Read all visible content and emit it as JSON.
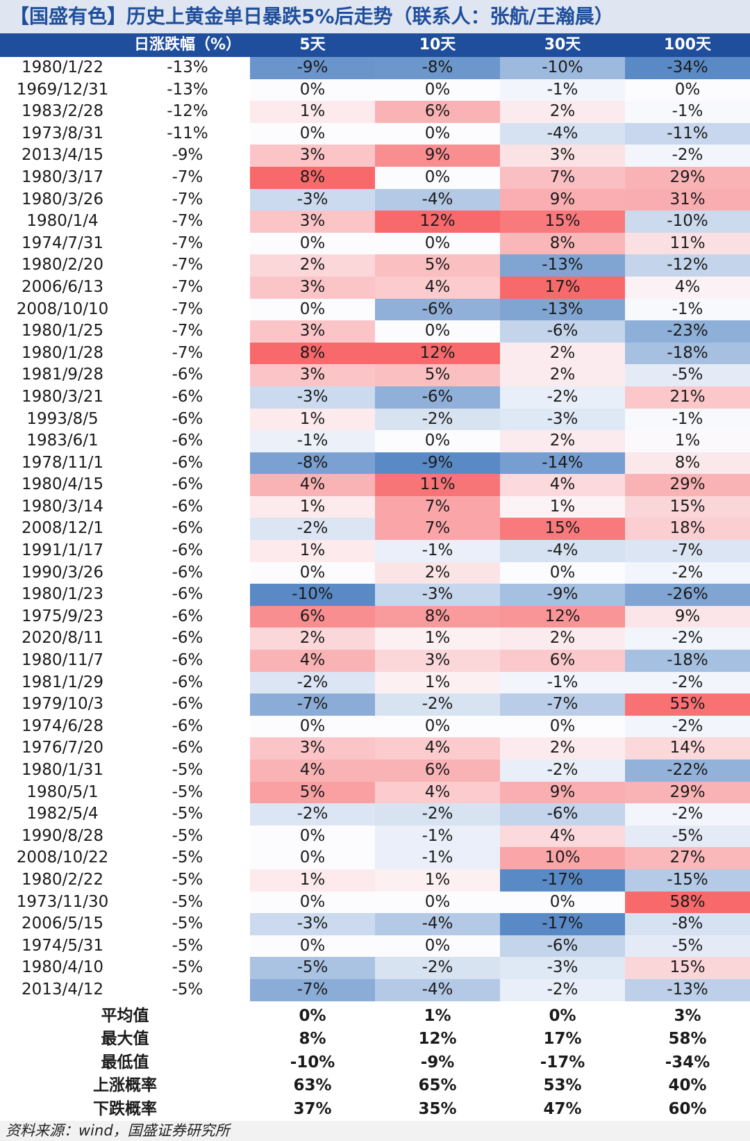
{
  "title": "【国盛有色】历史上黄金单日暴跌5%后走势（联系人：张航/王瀚晨）",
  "columns": {
    "date": "",
    "drop": "日涨跌幅（%）",
    "d5": "5天",
    "d10": "10天",
    "d30": "30天",
    "d100": "100天"
  },
  "rows": [
    {
      "date": "1980/1/22",
      "drop": "-13%",
      "d5": "-9%",
      "d10": "-8%",
      "d30": "-10%",
      "d100": "-34%"
    },
    {
      "date": "1969/12/31",
      "drop": "-13%",
      "d5": "0%",
      "d10": "0%",
      "d30": "-1%",
      "d100": "0%"
    },
    {
      "date": "1983/2/28",
      "drop": "-12%",
      "d5": "1%",
      "d10": "6%",
      "d30": "2%",
      "d100": "-1%"
    },
    {
      "date": "1973/8/31",
      "drop": "-11%",
      "d5": "0%",
      "d10": "0%",
      "d30": "-4%",
      "d100": "-11%"
    },
    {
      "date": "2013/4/15",
      "drop": "-9%",
      "d5": "3%",
      "d10": "9%",
      "d30": "3%",
      "d100": "-2%"
    },
    {
      "date": "1980/3/17",
      "drop": "-7%",
      "d5": "8%",
      "d10": "0%",
      "d30": "7%",
      "d100": "29%"
    },
    {
      "date": "1980/3/26",
      "drop": "-7%",
      "d5": "-3%",
      "d10": "-4%",
      "d30": "9%",
      "d100": "31%"
    },
    {
      "date": "1980/1/4",
      "drop": "-7%",
      "d5": "3%",
      "d10": "12%",
      "d30": "15%",
      "d100": "-10%"
    },
    {
      "date": "1974/7/31",
      "drop": "-7%",
      "d5": "0%",
      "d10": "0%",
      "d30": "8%",
      "d100": "11%"
    },
    {
      "date": "1980/2/20",
      "drop": "-7%",
      "d5": "2%",
      "d10": "5%",
      "d30": "-13%",
      "d100": "-12%"
    },
    {
      "date": "2006/6/13",
      "drop": "-7%",
      "d5": "3%",
      "d10": "4%",
      "d30": "17%",
      "d100": "4%"
    },
    {
      "date": "2008/10/10",
      "drop": "-7%",
      "d5": "0%",
      "d10": "-6%",
      "d30": "-13%",
      "d100": "-1%"
    },
    {
      "date": "1980/1/25",
      "drop": "-7%",
      "d5": "3%",
      "d10": "0%",
      "d30": "-6%",
      "d100": "-23%"
    },
    {
      "date": "1980/1/28",
      "drop": "-7%",
      "d5": "8%",
      "d10": "12%",
      "d30": "2%",
      "d100": "-18%"
    },
    {
      "date": "1981/9/28",
      "drop": "-6%",
      "d5": "3%",
      "d10": "5%",
      "d30": "2%",
      "d100": "-5%"
    },
    {
      "date": "1980/3/21",
      "drop": "-6%",
      "d5": "-3%",
      "d10": "-6%",
      "d30": "-2%",
      "d100": "21%"
    },
    {
      "date": "1993/8/5",
      "drop": "-6%",
      "d5": "1%",
      "d10": "-2%",
      "d30": "-3%",
      "d100": "-1%"
    },
    {
      "date": "1983/6/1",
      "drop": "-6%",
      "d5": "-1%",
      "d10": "0%",
      "d30": "2%",
      "d100": "1%"
    },
    {
      "date": "1978/11/1",
      "drop": "-6%",
      "d5": "-8%",
      "d10": "-9%",
      "d30": "-14%",
      "d100": "8%"
    },
    {
      "date": "1980/4/15",
      "drop": "-6%",
      "d5": "4%",
      "d10": "11%",
      "d30": "4%",
      "d100": "29%"
    },
    {
      "date": "1980/3/14",
      "drop": "-6%",
      "d5": "1%",
      "d10": "7%",
      "d30": "1%",
      "d100": "15%"
    },
    {
      "date": "2008/12/1",
      "drop": "-6%",
      "d5": "-2%",
      "d10": "7%",
      "d30": "15%",
      "d100": "18%"
    },
    {
      "date": "1991/1/17",
      "drop": "-6%",
      "d5": "1%",
      "d10": "-1%",
      "d30": "-4%",
      "d100": "-7%"
    },
    {
      "date": "1990/3/26",
      "drop": "-6%",
      "d5": "0%",
      "d10": "2%",
      "d30": "0%",
      "d100": "-2%"
    },
    {
      "date": "1980/1/23",
      "drop": "-6%",
      "d5": "-10%",
      "d10": "-3%",
      "d30": "-9%",
      "d100": "-26%"
    },
    {
      "date": "1975/9/23",
      "drop": "-6%",
      "d5": "6%",
      "d10": "8%",
      "d30": "12%",
      "d100": "9%"
    },
    {
      "date": "2020/8/11",
      "drop": "-6%",
      "d5": "2%",
      "d10": "1%",
      "d30": "2%",
      "d100": "-2%"
    },
    {
      "date": "1980/11/7",
      "drop": "-6%",
      "d5": "4%",
      "d10": "3%",
      "d30": "6%",
      "d100": "-18%"
    },
    {
      "date": "1981/1/29",
      "drop": "-6%",
      "d5": "-2%",
      "d10": "1%",
      "d30": "-1%",
      "d100": "-2%"
    },
    {
      "date": "1979/10/3",
      "drop": "-6%",
      "d5": "-7%",
      "d10": "-2%",
      "d30": "-7%",
      "d100": "55%"
    },
    {
      "date": "1974/6/28",
      "drop": "-6%",
      "d5": "0%",
      "d10": "0%",
      "d30": "0%",
      "d100": "-2%"
    },
    {
      "date": "1976/7/20",
      "drop": "-6%",
      "d5": "3%",
      "d10": "4%",
      "d30": "2%",
      "d100": "14%"
    },
    {
      "date": "1980/1/31",
      "drop": "-5%",
      "d5": "4%",
      "d10": "6%",
      "d30": "-2%",
      "d100": "-22%"
    },
    {
      "date": "1980/5/1",
      "drop": "-5%",
      "d5": "5%",
      "d10": "4%",
      "d30": "9%",
      "d100": "29%"
    },
    {
      "date": "1982/5/4",
      "drop": "-5%",
      "d5": "-2%",
      "d10": "-2%",
      "d30": "-6%",
      "d100": "-2%"
    },
    {
      "date": "1990/8/28",
      "drop": "-5%",
      "d5": "0%",
      "d10": "-1%",
      "d30": "4%",
      "d100": "-5%"
    },
    {
      "date": "2008/10/22",
      "drop": "-5%",
      "d5": "0%",
      "d10": "-1%",
      "d30": "10%",
      "d100": "27%"
    },
    {
      "date": "1980/2/22",
      "drop": "-5%",
      "d5": "1%",
      "d10": "1%",
      "d30": "-17%",
      "d100": "-15%"
    },
    {
      "date": "1973/11/30",
      "drop": "-5%",
      "d5": "0%",
      "d10": "0%",
      "d30": "0%",
      "d100": "58%"
    },
    {
      "date": "2006/5/15",
      "drop": "-5%",
      "d5": "-3%",
      "d10": "-4%",
      "d30": "-17%",
      "d100": "-8%"
    },
    {
      "date": "1974/5/31",
      "drop": "-5%",
      "d5": "0%",
      "d10": "0%",
      "d30": "-6%",
      "d100": "-5%"
    },
    {
      "date": "1980/4/10",
      "drop": "-5%",
      "d5": "-5%",
      "d10": "-2%",
      "d30": "-3%",
      "d100": "15%"
    },
    {
      "date": "2013/4/12",
      "drop": "-5%",
      "d5": "-7%",
      "d10": "-4%",
      "d30": "-2%",
      "d100": "-13%"
    }
  ],
  "summary": [
    {
      "label": "平均值",
      "d5": "0%",
      "d10": "1%",
      "d30": "0%",
      "d100": "3%"
    },
    {
      "label": "最大值",
      "d5": "8%",
      "d10": "12%",
      "d30": "17%",
      "d100": "58%"
    },
    {
      "label": "最低值",
      "d5": "-10%",
      "d10": "-9%",
      "d30": "-17%",
      "d100": "-34%"
    },
    {
      "label": "上涨概率",
      "d5": "63%",
      "d10": "65%",
      "d30": "53%",
      "d100": "40%"
    },
    {
      "label": "下跌概率",
      "d5": "37%",
      "d10": "35%",
      "d30": "47%",
      "d100": "60%"
    }
  ],
  "source": "资料来源：wind，国盛证券研究所",
  "colors": {
    "header_bg": "#1f4e9c",
    "title_bg": "#dfe6f1",
    "title_text": "#1f4e9c",
    "pos": "#f8696b",
    "neg": "#5a8ac6",
    "neutral": "#fcfcff"
  }
}
